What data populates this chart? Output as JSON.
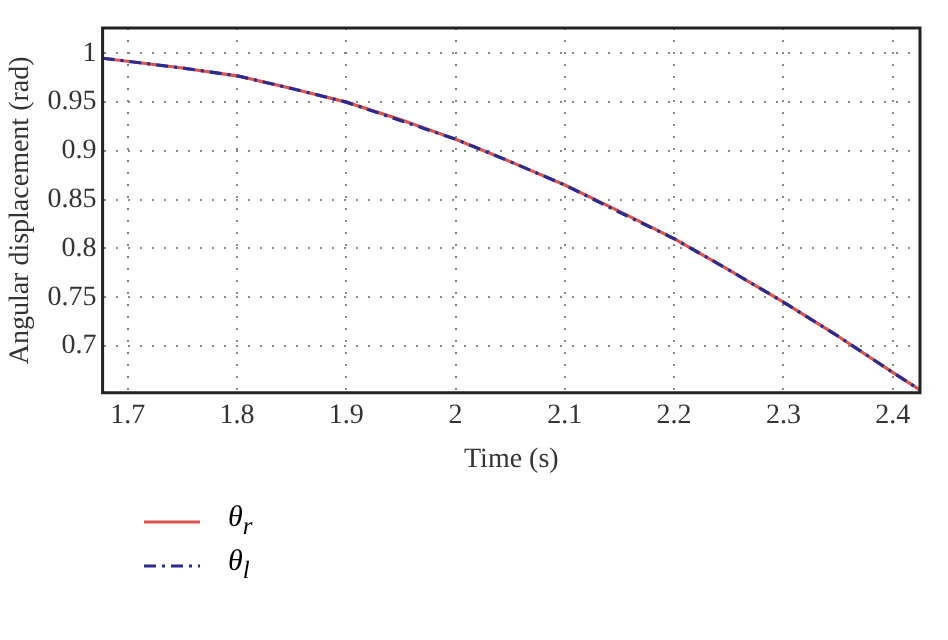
{
  "chart_data": {
    "type": "line",
    "xlabel": "Time (s)",
    "ylabel": "Angular displacement (rad)",
    "xlim": [
      1.677,
      2.425
    ],
    "xticks": [
      1.7,
      1.8,
      1.9,
      2,
      2.1,
      2.2,
      2.3,
      2.4
    ],
    "ylim": [
      0.652,
      1.026
    ],
    "yticks": [
      0.7,
      0.75,
      0.8,
      0.85,
      0.9,
      0.95,
      1
    ],
    "grid": true,
    "legend": "bottom left",
    "marker": "none",
    "series": [
      {
        "name": "θ$_{r}$",
        "color": "#d9534f",
        "line_style": "solid",
        "x": [
          1.677,
          1.75,
          1.8,
          1.85,
          1.9,
          1.95,
          2,
          2.05,
          2.1,
          2.15,
          2.2,
          2.25,
          2.3,
          2.35,
          2.4,
          2.425
        ],
        "values": [
          0.995,
          0.985,
          0.977,
          0.964,
          0.95,
          0.932,
          0.912,
          0.889,
          0.865,
          0.838,
          0.81,
          0.778,
          0.745,
          0.71,
          0.673,
          0.655
        ]
      },
      {
        "name": "θ$_{l}$",
        "color": "#2b2b8f",
        "line_style": "dashed",
        "x": [
          1.677,
          1.75,
          1.8,
          1.85,
          1.9,
          1.95,
          2,
          2.05,
          2.1,
          2.15,
          2.2,
          2.25,
          2.3,
          2.35,
          2.4,
          2.425
        ],
        "values": [
          0.995,
          0.985,
          0.977,
          0.964,
          0.95,
          0.931,
          0.912,
          0.889,
          0.865,
          0.837,
          0.81,
          0.778,
          0.745,
          0.71,
          0.673,
          0.655
        ]
      }
    ]
  }
}
